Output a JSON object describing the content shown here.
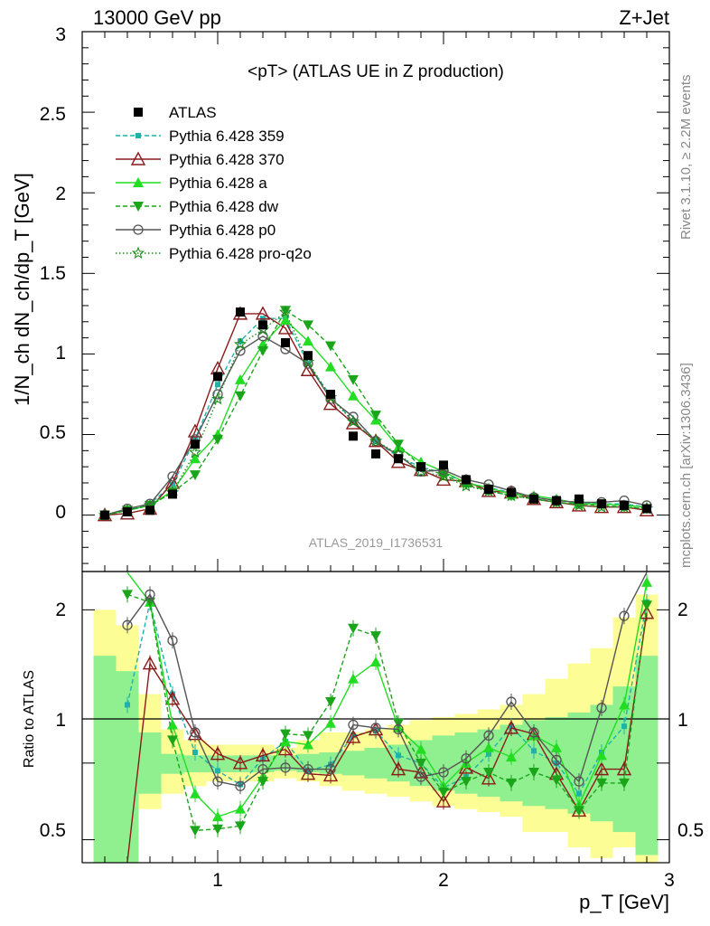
{
  "header": {
    "left": "13000 GeV pp",
    "right": "Z+Jet"
  },
  "side_text": {
    "rivet": "Rivet 3.1.10, ≥ 2.2M events",
    "mcplots": "mcplots.cern.ch [arXiv:1306.3436]"
  },
  "watermark": "ATLAS_2019_I1736531",
  "colors": {
    "ATLAS": "#000000",
    "p359": "#20b2aa",
    "p370": "#8b1a1a",
    "pa": "#22dd22",
    "pdw": "#1aa51a",
    "pp0": "#555555",
    "pq2o": "#1e8c1e",
    "band_yellow": "#fdfd96",
    "band_green": "#90f090"
  },
  "chart_data": {
    "type": "line",
    "title": "<pT> (ATLAS UE in Z production)",
    "xlabel": "p_T [GeV]",
    "ylabel": "1/N_ch dN_ch/dp_T [GeV]",
    "ratio_ylabel": "Ratio to ATLAS",
    "xlim": [
      0.4,
      3.0
    ],
    "ylim": [
      -0.35,
      3.0
    ],
    "ratio_ylim": [
      0.35,
      2.25
    ],
    "x_ticks": [
      "1",
      "2",
      "3"
    ],
    "y_ticks": [
      "0",
      "0.5",
      "1",
      "1.5",
      "2",
      "2.5",
      "3"
    ],
    "ratio_y_ticks": [
      "0.5",
      "1",
      "2"
    ],
    "legend_position": "top-left",
    "x": [
      0.5,
      0.6,
      0.7,
      0.8,
      0.9,
      1.0,
      1.1,
      1.2,
      1.3,
      1.4,
      1.5,
      1.6,
      1.7,
      1.8,
      1.9,
      2.0,
      2.1,
      2.2,
      2.3,
      2.4,
      2.5,
      2.6,
      2.7,
      2.8,
      2.9
    ],
    "data": {
      "name": "ATLAS",
      "values": [
        0.0,
        0.02,
        0.03,
        0.13,
        0.44,
        0.86,
        1.26,
        1.18,
        1.07,
        0.99,
        0.75,
        0.49,
        0.38,
        0.35,
        0.3,
        0.31,
        0.22,
        0.16,
        0.14,
        0.1,
        0.09,
        0.1,
        0.07,
        0.06,
        0.04
      ]
    },
    "series": [
      {
        "name": "Pythia 6.428 359",
        "key": "p359",
        "values": [
          0.0,
          0.03,
          0.07,
          0.19,
          0.47,
          0.81,
          1.08,
          1.22,
          1.22,
          0.94,
          0.74,
          0.58,
          0.46,
          0.36,
          0.3,
          0.26,
          0.2,
          0.17,
          0.14,
          0.11,
          0.09,
          0.08,
          0.07,
          0.07,
          0.05
        ]
      },
      {
        "name": "Pythia 6.428 370",
        "key": "p370",
        "values": [
          0.0,
          0.01,
          0.04,
          0.2,
          0.52,
          0.91,
          1.25,
          1.25,
          1.16,
          0.9,
          0.69,
          0.57,
          0.46,
          0.33,
          0.28,
          0.22,
          0.21,
          0.15,
          0.14,
          0.1,
          0.08,
          0.06,
          0.05,
          0.05,
          0.03
        ]
      },
      {
        "name": "Pythia 6.428 a",
        "key": "pa",
        "values": [
          0.0,
          0.03,
          0.06,
          0.15,
          0.35,
          0.5,
          0.84,
          1.06,
          1.21,
          1.08,
          0.92,
          0.74,
          0.59,
          0.42,
          0.33,
          0.27,
          0.2,
          0.17,
          0.13,
          0.12,
          0.1,
          0.07,
          0.07,
          0.06,
          0.05
        ]
      },
      {
        "name": "Pythia 6.428 dw",
        "key": "pdw",
        "values": [
          0.0,
          0.03,
          0.06,
          0.14,
          0.25,
          0.47,
          0.74,
          1.02,
          1.27,
          1.18,
          1.05,
          0.84,
          0.62,
          0.44,
          0.3,
          0.25,
          0.19,
          0.15,
          0.12,
          0.1,
          0.08,
          0.07,
          0.06,
          0.05,
          0.04
        ]
      },
      {
        "name": "Pythia 6.428 p0",
        "key": "pp0",
        "values": [
          0.0,
          0.04,
          0.07,
          0.24,
          0.47,
          0.75,
          1.02,
          1.11,
          1.03,
          0.94,
          0.72,
          0.61,
          0.46,
          0.37,
          0.27,
          0.28,
          0.22,
          0.19,
          0.15,
          0.11,
          0.09,
          0.08,
          0.08,
          0.09,
          0.06
        ]
      },
      {
        "name": "Pythia 6.428 pro-q2o",
        "key": "pq2o",
        "values": [
          0.0,
          0.03,
          0.06,
          0.14,
          0.39,
          0.72,
          1.06,
          1.15,
          1.26,
          0.95,
          0.73,
          0.58,
          0.46,
          0.38,
          0.27,
          0.24,
          0.18,
          0.15,
          0.12,
          0.1,
          0.08,
          0.06,
          0.05,
          0.05,
          0.04
        ]
      }
    ],
    "ratios": {
      "p359": [
        null,
        1.38,
        2.05,
        1.45,
        1.07,
        0.95,
        0.86,
        1.03,
        1.14,
        0.95,
        0.99,
        1.18,
        1.21,
        1.05,
        1.0,
        0.84,
        0.91,
        1.06,
        1.24,
        1.08,
        1.0,
        0.8,
        1.07,
        1.24,
        2.05
      ],
      "p370": [
        null,
        0.15,
        1.65,
        1.42,
        1.19,
        1.06,
        1.0,
        1.05,
        1.09,
        0.93,
        0.92,
        1.17,
        1.22,
        0.96,
        0.94,
        0.75,
        0.97,
        0.9,
        1.23,
        1.19,
        0.93,
        0.69,
        0.96,
        0.96,
        1.98
      ],
      "pa": [
        null,
        2.3,
        2.05,
        1.25,
        0.8,
        0.65,
        0.7,
        0.91,
        1.14,
        1.12,
        1.26,
        1.55,
        1.66,
        1.23,
        1.09,
        0.85,
        1.0,
        1.1,
        1.04,
        1.18,
        1.1,
        0.73,
        1.05,
        1.38,
        2.18
      ],
      "pdw": [
        null,
        2.1,
        2.05,
        1.15,
        0.56,
        0.57,
        0.59,
        0.88,
        1.19,
        1.18,
        1.4,
        1.88,
        1.83,
        1.26,
        1.0,
        0.81,
        0.88,
        0.94,
        0.87,
        0.94,
        0.89,
        0.69,
        0.87,
        0.87,
        2.03
      ],
      "pp0": [
        null,
        1.9,
        2.1,
        1.8,
        1.2,
        0.88,
        0.85,
        0.96,
        0.97,
        0.96,
        0.96,
        1.25,
        1.23,
        1.22,
        0.91,
        0.94,
        1.03,
        1.18,
        1.4,
        1.2,
        1.02,
        0.88,
        1.36,
        1.96,
        2.3
      ]
    },
    "band_yellow": [
      2.0,
      1.9,
      1.45,
      1.22,
      1.15,
      1.12,
      1.12,
      1.12,
      1.1,
      1.15,
      1.2,
      1.2,
      1.22,
      1.25,
      1.28,
      1.3,
      1.32,
      1.35,
      1.38,
      1.45,
      1.55,
      1.65,
      1.75,
      1.95,
      2.1
    ],
    "band_green": [
      1.7,
      1.6,
      1.2,
      1.06,
      1.05,
      1.05,
      1.05,
      1.05,
      1.05,
      1.06,
      1.07,
      1.08,
      1.1,
      1.12,
      1.15,
      1.18,
      1.2,
      1.22,
      1.25,
      1.28,
      1.3,
      1.33,
      1.38,
      1.5,
      1.7
    ],
    "band_yellow_low": [
      0.2,
      0.25,
      0.7,
      0.8,
      0.85,
      0.88,
      0.88,
      0.88,
      0.9,
      0.88,
      0.85,
      0.82,
      0.8,
      0.78,
      0.75,
      0.72,
      0.7,
      0.68,
      0.65,
      0.55,
      0.55,
      0.45,
      0.38,
      0.45,
      0.3
    ],
    "band_green_low": [
      0.3,
      0.35,
      0.8,
      0.93,
      0.94,
      0.94,
      0.94,
      0.94,
      0.95,
      0.94,
      0.93,
      0.92,
      0.9,
      0.88,
      0.85,
      0.82,
      0.8,
      0.78,
      0.75,
      0.72,
      0.7,
      0.67,
      0.62,
      0.55,
      0.4
    ]
  }
}
